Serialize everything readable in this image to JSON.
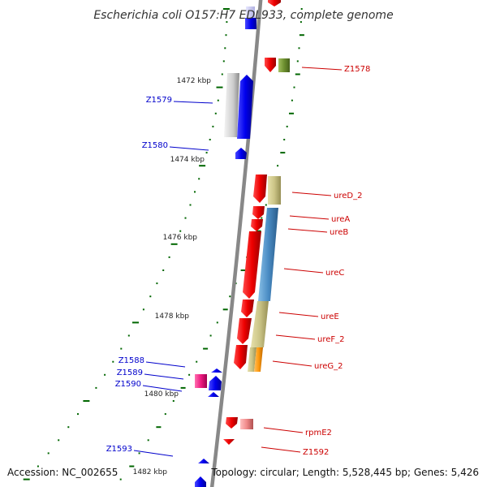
{
  "title": "Escherichia coli O157:H7 EDL933, complete genome",
  "footer": {
    "accession": "Accession: NC_002655",
    "topology": "Topology: circular; Length: 5,528,445 bp; Genes: 5,426"
  },
  "scale_labels": [
    "1472 kbp",
    "1474 kbp",
    "1476 kbp",
    "1478 kbp",
    "1480 kbp",
    "1482 kbp"
  ],
  "genes_left": [
    "Z1579",
    "Z1580",
    "Z1588",
    "Z1589",
    "Z1590",
    "Z1593"
  ],
  "genes_right": [
    "Z1578",
    "ureD_2",
    "ureA",
    "ureB",
    "ureC",
    "ureE",
    "ureF_2",
    "ureG_2",
    "rpmE2",
    "Z1592"
  ],
  "colors": {
    "backbone": "#888888",
    "forward_strand": "#0000ff",
    "reverse_strand": "#ff0000",
    "tick": "#006600",
    "left_label": "#0000cc",
    "right_label": "#cc0000"
  }
}
